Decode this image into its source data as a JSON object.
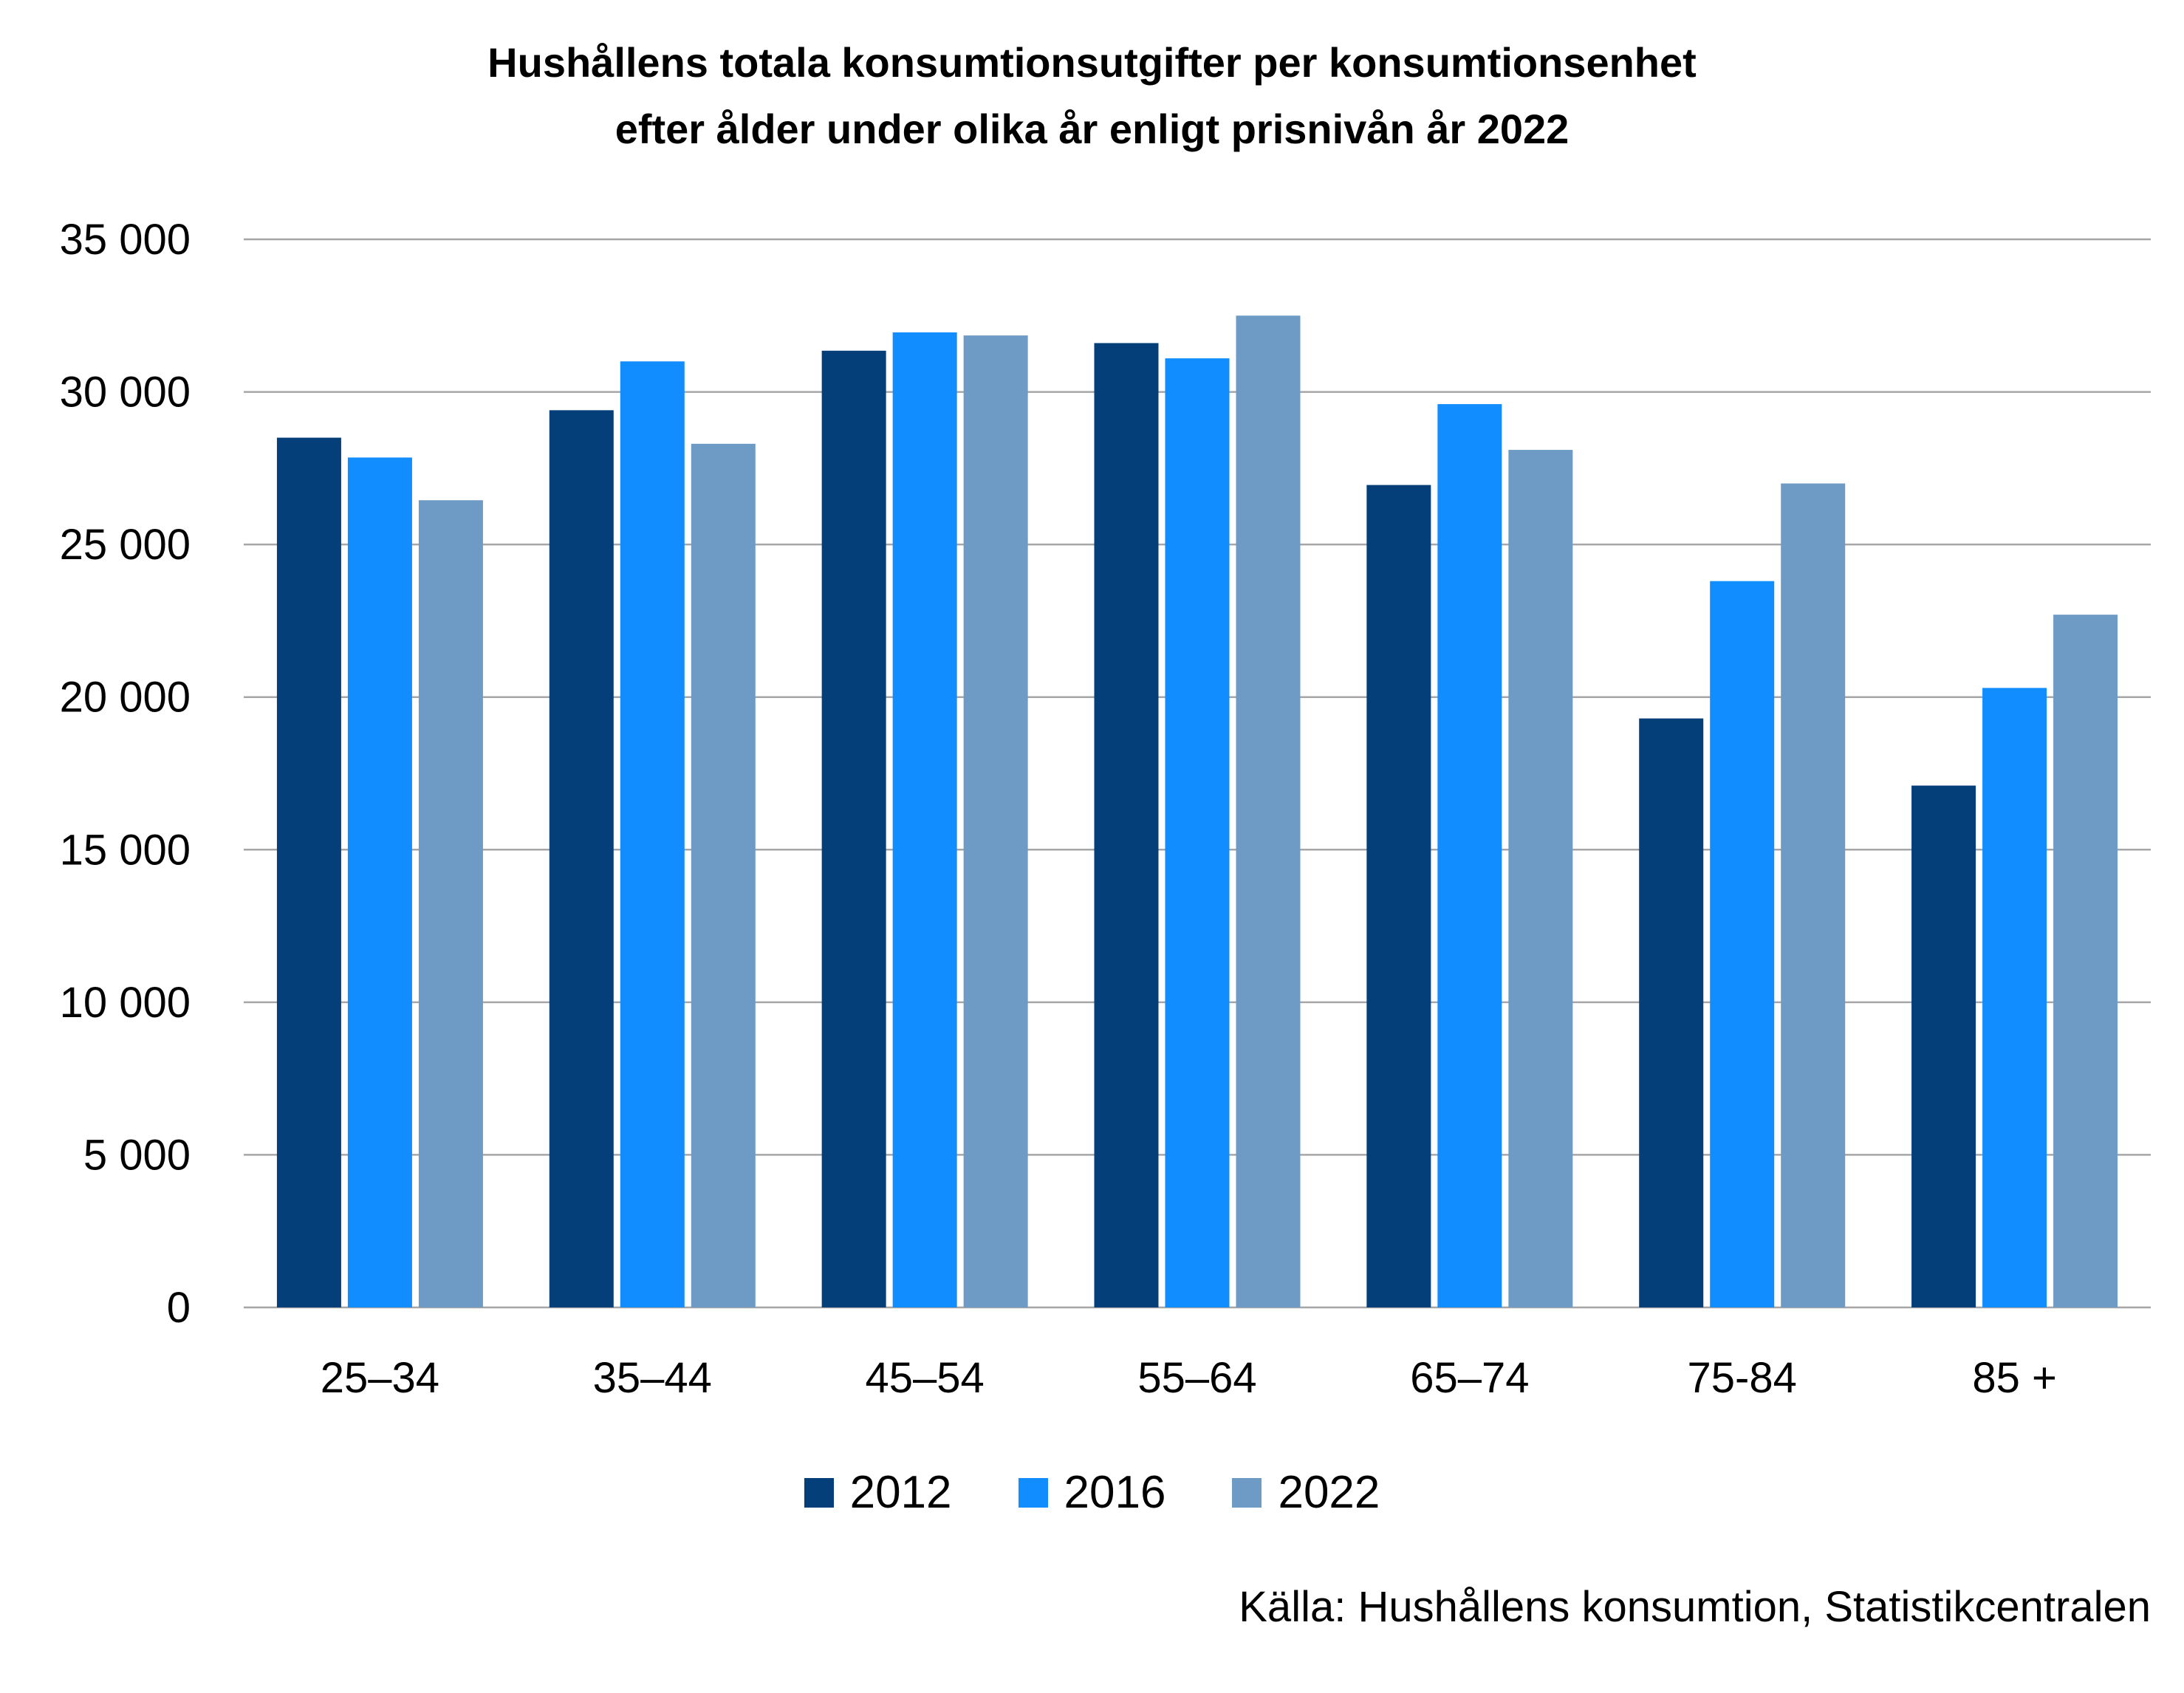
{
  "chart_data": {
    "type": "bar",
    "title": "Hushållens totala konsumtionsutgifter per konsumtionsenhet",
    "subtitle": "efter ålder under olika år enligt prisnivån år 2022",
    "categories": [
      "25–34",
      "35–44",
      "45–54",
      "55–64",
      "65–74",
      "75-84",
      "85 +"
    ],
    "series": [
      {
        "name": "2012",
        "color": "#053F7A",
        "values": [
          28500,
          29400,
          31350,
          31600,
          26950,
          19300,
          17100
        ]
      },
      {
        "name": "2016",
        "color": "#128DFF",
        "values": [
          27850,
          31000,
          31950,
          31100,
          29600,
          23800,
          20300
        ]
      },
      {
        "name": "2022",
        "color": "#6D9BC5",
        "values": [
          26450,
          28300,
          31850,
          32500,
          28100,
          27000,
          22700
        ]
      }
    ],
    "yticks": [
      "0",
      "5 000",
      "10 000",
      "15 000",
      "20 000",
      "25 000",
      "30 000",
      "35 000"
    ],
    "ylim": [
      0,
      35000
    ],
    "grid": true,
    "legend_position": "bottom",
    "source": "Källa: Hushållens konsumtion, Statistikcentralen"
  }
}
